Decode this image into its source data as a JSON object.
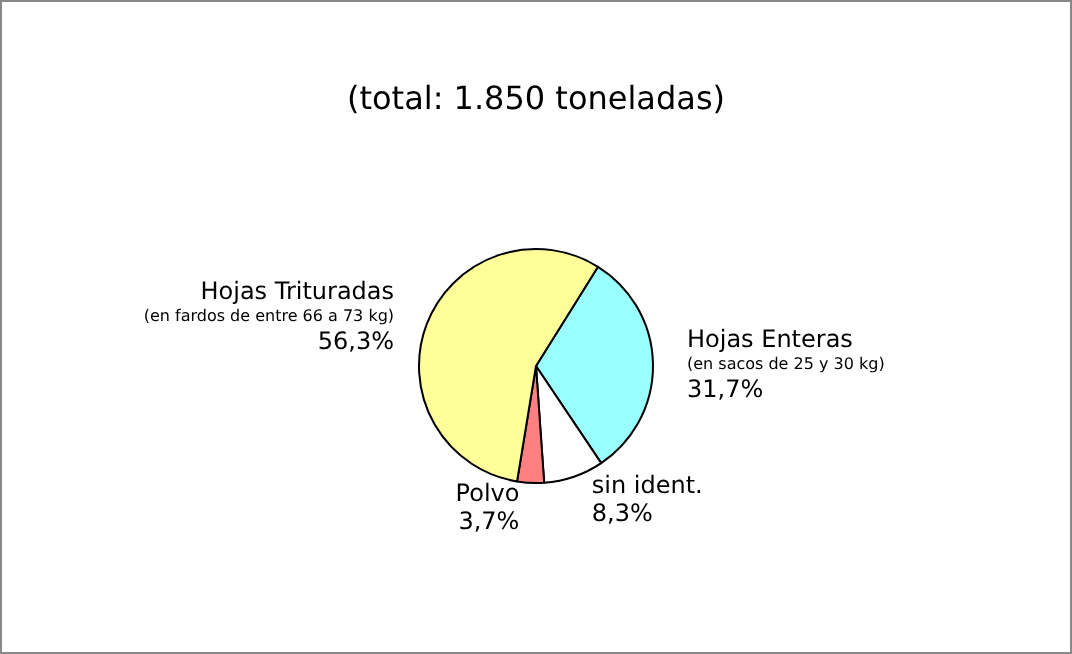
{
  "chart_data": {
    "type": "pie",
    "title": "(total: 1.850 toneladas)",
    "categories": [
      "Hojas Enteras\n(en sacos de 25 y 30 kg)",
      "sin ident.",
      "Polvo",
      "Hojas Trituradas\n(en fardos de entre 66 a 73 kg)"
    ],
    "values": [
      31.7,
      8.3,
      3.7,
      56.3
    ],
    "colors": [
      "#99ffff",
      "#ffffff",
      "#ff8080",
      "#ffff99"
    ],
    "value_labels": [
      "31,7%",
      "8,3%",
      "3,7%",
      "56,3%"
    ],
    "legend": false
  }
}
